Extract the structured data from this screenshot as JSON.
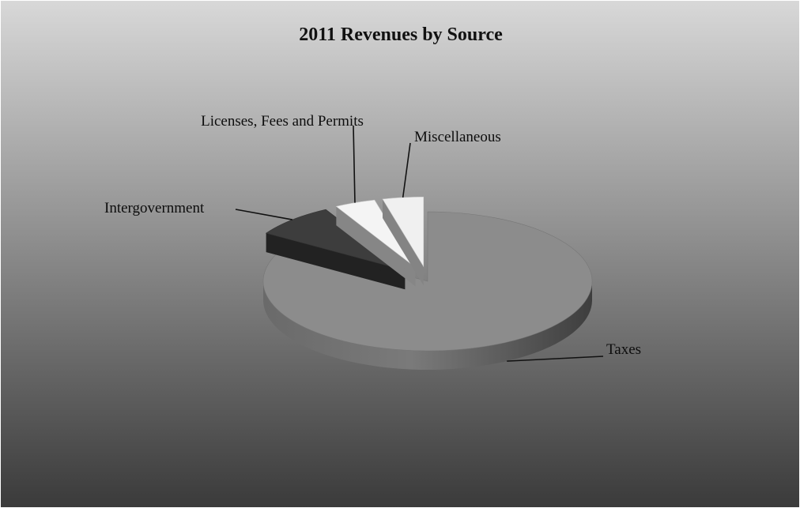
{
  "chart_data": {
    "type": "pie",
    "title": "2011 Revenues by Source",
    "slices": [
      {
        "label": "Taxes",
        "value": 84,
        "color": "#8c8c8c",
        "exploded": false
      },
      {
        "label": "Intergovernment",
        "value": 8,
        "color": "#3d3d3d",
        "exploded": true
      },
      {
        "label": "Licenses, Fees and Permits",
        "value": 4,
        "color": "#f4f4f4",
        "exploded": true
      },
      {
        "label": "Miscellaneous",
        "value": 4,
        "color": "#f0f0f0",
        "exploded": true
      }
    ],
    "style": "3d",
    "background": {
      "top": "#d8d8d8",
      "bottom": "#3a3a3a"
    }
  }
}
